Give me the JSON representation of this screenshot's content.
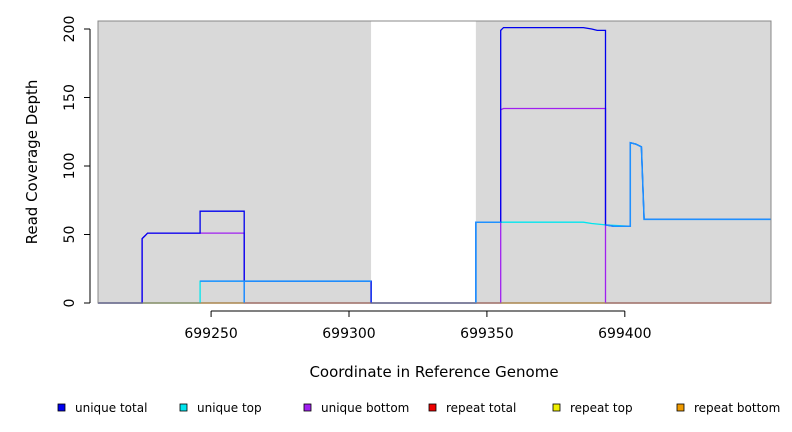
{
  "chart_data": {
    "type": "line",
    "title": "",
    "xlabel": "Coordinate in Reference Genome",
    "ylabel": "Read Coverage Depth",
    "xlim": [
      699209,
      699453
    ],
    "ylim": [
      0,
      200
    ],
    "x_ticks": [
      699250,
      699300,
      699350,
      699400
    ],
    "y_ticks": [
      0,
      50,
      100,
      150,
      200
    ],
    "shaded_regions": [
      {
        "x0": 699209,
        "x1": 699308
      },
      {
        "x0": 699346,
        "x1": 699453
      }
    ],
    "colors": {
      "shade": "#d9d9d9",
      "unique_total": "#0000ee",
      "unique_top": "#00e5ee",
      "unique_bottom": "#a020f0",
      "repeat_total": "#ee0000",
      "repeat_top": "#eeee00",
      "repeat_bottom": "#ee9a00",
      "overlap": "#1e90ff"
    },
    "series": [
      {
        "key": "repeat_total",
        "name": "repeat total",
        "color": "#ee0000",
        "points": [
          [
            699209,
            0
          ],
          [
            699453,
            0
          ]
        ]
      },
      {
        "key": "repeat_top",
        "name": "repeat top",
        "color": "#eeee00",
        "points": [
          [
            699209,
            0
          ],
          [
            699453,
            0
          ]
        ]
      },
      {
        "key": "repeat_bottom",
        "name": "repeat bottom",
        "color": "#ee9a00",
        "points": [
          [
            699209,
            0
          ],
          [
            699453,
            0
          ]
        ]
      },
      {
        "key": "unique_bottom",
        "name": "unique bottom",
        "color": "#a020f0",
        "points": [
          [
            699209,
            0
          ],
          [
            699225,
            0
          ],
          [
            699225,
            47
          ],
          [
            699226,
            49
          ],
          [
            699227,
            51
          ],
          [
            699262,
            51
          ],
          [
            699262,
            0
          ],
          [
            699355,
            0
          ],
          [
            699355,
            141
          ],
          [
            699356,
            142
          ],
          [
            699393,
            142
          ],
          [
            699393,
            0
          ],
          [
            699453,
            0
          ]
        ]
      },
      {
        "key": "unique_top",
        "name": "unique top",
        "color": "#00e5ee",
        "points": [
          [
            699209,
            0
          ],
          [
            699246,
            0
          ],
          [
            699246,
            16
          ],
          [
            699308,
            16
          ],
          [
            699308,
            0
          ],
          [
            699346,
            0
          ],
          [
            699346,
            59
          ],
          [
            699385,
            59
          ],
          [
            699388,
            58
          ],
          [
            699393,
            57
          ],
          [
            699402,
            56
          ],
          [
            699402,
            117
          ],
          [
            699404,
            116
          ],
          [
            699406,
            114
          ],
          [
            699407,
            61
          ],
          [
            699453,
            61
          ]
        ]
      },
      {
        "key": "unique_total",
        "name": "unique total",
        "color": "#0000ee",
        "points": [
          [
            699209,
            0
          ],
          [
            699225,
            0
          ],
          [
            699225,
            47
          ],
          [
            699226,
            49
          ],
          [
            699227,
            51
          ],
          [
            699246,
            51
          ],
          [
            699246,
            67
          ],
          [
            699262,
            67
          ],
          [
            699262,
            16
          ],
          [
            699308,
            16
          ],
          [
            699308,
            0
          ],
          [
            699346,
            0
          ],
          [
            699346,
            59
          ],
          [
            699355,
            59
          ],
          [
            699355,
            199
          ],
          [
            699356,
            201
          ],
          [
            699385,
            201
          ],
          [
            699388,
            200
          ],
          [
            699390,
            199
          ],
          [
            699393,
            199
          ],
          [
            699393,
            57
          ],
          [
            699396,
            56
          ],
          [
            699402,
            56
          ],
          [
            699402,
            117
          ],
          [
            699404,
            116
          ],
          [
            699406,
            114
          ],
          [
            699407,
            61
          ],
          [
            699453,
            61
          ]
        ]
      }
    ],
    "overlap_segments": [
      [
        [
          699246,
          16
        ],
        [
          699308,
          16
        ]
      ],
      [
        [
          699262,
          0
        ],
        [
          699262,
          16
        ]
      ],
      [
        [
          699346,
          0
        ],
        [
          699346,
          59
        ],
        [
          699355,
          59
        ]
      ],
      [
        [
          699393,
          57
        ],
        [
          699396,
          56
        ],
        [
          699402,
          56
        ],
        [
          699402,
          117
        ],
        [
          699404,
          116
        ],
        [
          699406,
          114
        ],
        [
          699407,
          61
        ],
        [
          699453,
          61
        ]
      ]
    ],
    "legend": [
      {
        "label": "unique total",
        "color": "#0000ee"
      },
      {
        "label": "unique top",
        "color": "#00e5ee"
      },
      {
        "label": "unique bottom",
        "color": "#a020f0"
      },
      {
        "label": "repeat total",
        "color": "#ee0000"
      },
      {
        "label": "repeat top",
        "color": "#eeee00"
      },
      {
        "label": "repeat bottom",
        "color": "#ee9a00"
      }
    ],
    "legend_placement": "bottom"
  }
}
